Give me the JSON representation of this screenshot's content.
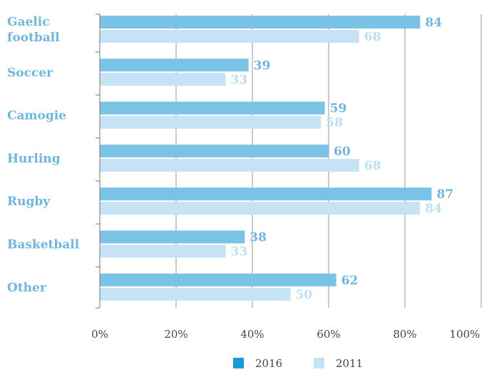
{
  "chart_data": {
    "type": "bar",
    "orientation": "horizontal",
    "categories": [
      "Gaelic football",
      "Soccer",
      "Camogie",
      "Hurling",
      "Rugby",
      "Basketball",
      "Other"
    ],
    "category_lines": [
      [
        "Gaelic",
        "football"
      ],
      [
        "Soccer"
      ],
      [
        "Camogie"
      ],
      [
        "Hurling"
      ],
      [
        "Rugby"
      ],
      [
        "Basketball"
      ],
      [
        "Other"
      ]
    ],
    "series": [
      {
        "name": "2016",
        "values": [
          84,
          39,
          59,
          60,
          87,
          38,
          62
        ]
      },
      {
        "name": "2011",
        "values": [
          68,
          33,
          58,
          68,
          84,
          33,
          50
        ]
      }
    ],
    "value_labels": {
      "2016": [
        "84",
        "39",
        "59",
        "60",
        "87",
        "38",
        "62"
      ],
      "2011": [
        "68",
        "33",
        "58",
        "68",
        "84",
        "33",
        "50"
      ]
    },
    "xlim": [
      0,
      100
    ],
    "x_ticks": [
      "0%",
      "20%",
      "40%",
      "60%",
      "80%",
      "100%"
    ],
    "grid": "vertical",
    "legend_position": "bottom-center",
    "legend": [
      {
        "label": "2016",
        "swatch_color": "#1a9bd7"
      },
      {
        "label": "2011",
        "swatch_color": "#c5e3f5"
      }
    ],
    "colors": {
      "bar_2016": "#7ac2e6",
      "bar_2011": "#c5e3f5",
      "label_2016": "#6eb6dc",
      "label_2011": "#bcdff2",
      "category_text": "#6eb6dc",
      "grid": "#a6a6a6",
      "axis": "#888888"
    }
  }
}
